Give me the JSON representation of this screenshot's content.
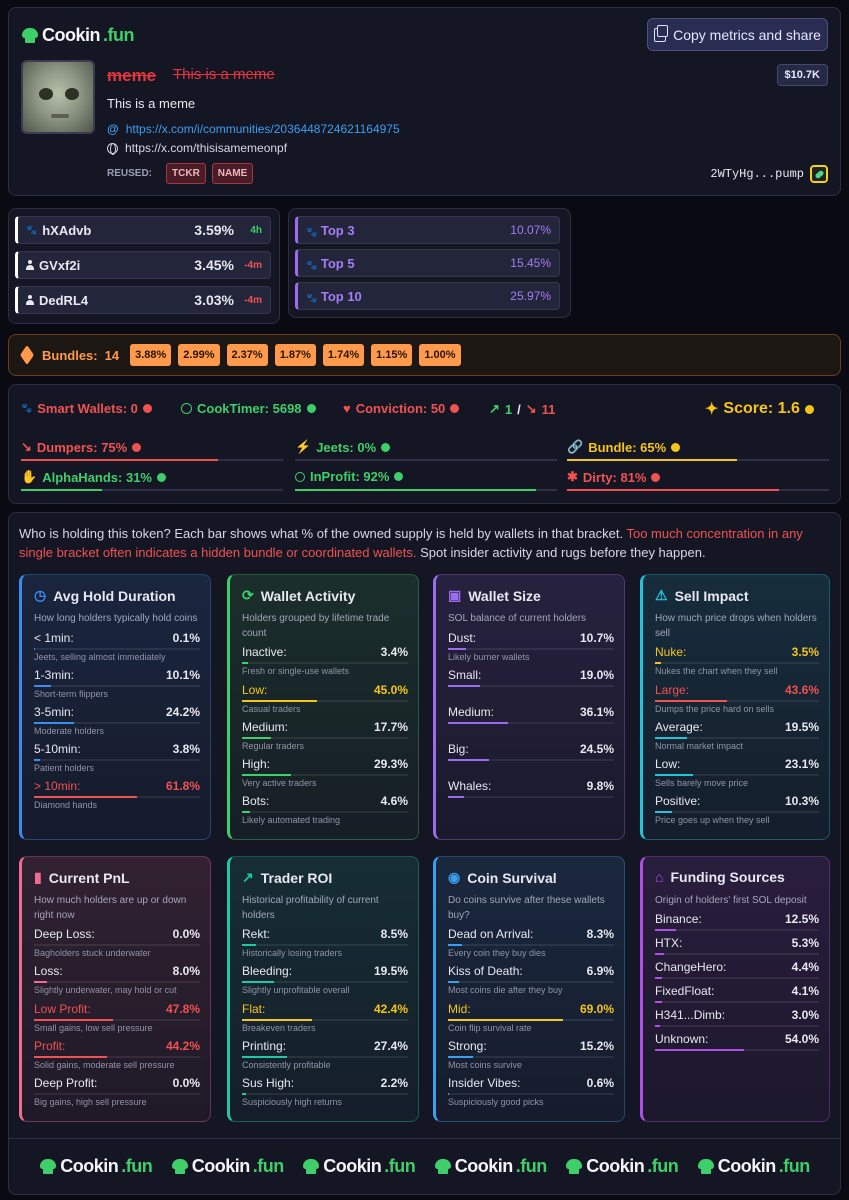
{
  "brand": {
    "name": "Cookin",
    "tld": ".fun"
  },
  "header": {
    "copy_button": "Copy metrics and share",
    "title": "meme",
    "title_sub": "This is a meme",
    "market_cap": "$10.7K",
    "description": "This is a meme",
    "community_link": "https://x.com/i/communities/2036448724621164975",
    "website_link": "https://x.com/thisisamemeonpf",
    "reused_label": "REUSED:",
    "reused_tags": [
      "TCKR",
      "NAME"
    ],
    "contract": "2WTyHg...pump"
  },
  "holders": [
    {
      "name": "hXAdvb",
      "pct": "3.59%",
      "ago": "4h",
      "ago_color": "#3fcf6a",
      "icon": "paw-icon"
    },
    {
      "name": "GVxf2i",
      "pct": "3.45%",
      "ago": "-4m",
      "ago_color": "#f05252",
      "icon": "person-icon"
    },
    {
      "name": "DedRL4",
      "pct": "3.03%",
      "ago": "-4m",
      "ago_color": "#f05252",
      "icon": "person-icon"
    }
  ],
  "tops": [
    {
      "name": "Top 3",
      "pct": "10.07%"
    },
    {
      "name": "Top 5",
      "pct": "15.45%"
    },
    {
      "name": "Top 10",
      "pct": "25.97%"
    }
  ],
  "bundles": {
    "label": "Bundles:",
    "count": "14",
    "chips": [
      "3.88%",
      "2.99%",
      "2.37%",
      "1.87%",
      "1.74%",
      "1.15%",
      "1.00%"
    ]
  },
  "metrics": {
    "smart_wallets": "Smart Wallets: 0",
    "cooktimer": "CookTimer: 5698",
    "conviction": "Conviction: 50",
    "trend_up": "1",
    "trend_sep": "/",
    "trend_down": "11",
    "score": "Score: 1.6",
    "dumpers": {
      "label": "Dumpers: 75%",
      "value": 75
    },
    "jeets": {
      "label": "Jeets: 0%",
      "value": 0
    },
    "bundle": {
      "label": "Bundle: 65%",
      "value": 65
    },
    "alphahands": {
      "label": "AlphaHands: 31%",
      "value": 31
    },
    "inprofit": {
      "label": "InProfit: 92%",
      "value": 92
    },
    "dirty": {
      "label": "Dirty: 81%",
      "value": 81
    }
  },
  "intro": {
    "text1": "Who is holding this token? Each bar shows what % of the owned supply is held by wallets in that bracket. ",
    "warning": "Too much concentration in any single bracket often indicates a hidden bundle or coordinated wallets.",
    "text2": " Spot insider activity and rugs before they happen."
  },
  "cards": [
    {
      "title": "Avg Hold Duration",
      "caption": "How long holders typically hold coins",
      "accent": "#3b8cf0",
      "icon": "clock-icon",
      "rows": [
        {
          "label": "< 1min:",
          "value": "0.1%",
          "pct": 0.1,
          "note": "Jeets, selling almost immediately"
        },
        {
          "label": "1-3min:",
          "value": "10.1%",
          "pct": 10.1,
          "note": "Short-term flippers"
        },
        {
          "label": "3-5min:",
          "value": "24.2%",
          "pct": 24.2,
          "note": "Moderate holders"
        },
        {
          "label": "5-10min:",
          "value": "3.8%",
          "pct": 3.8,
          "note": "Patient holders"
        },
        {
          "label": "> 10min:",
          "value": "61.8%",
          "pct": 61.8,
          "note": "Diamond hands",
          "hl": "#f05252"
        }
      ]
    },
    {
      "title": "Wallet Activity",
      "caption": "Holders grouped by lifetime trade count",
      "accent": "#3fcf6a",
      "icon": "refresh-icon",
      "rows": [
        {
          "label": "Inactive:",
          "value": "3.4%",
          "pct": 3.4,
          "note": "Fresh or single-use wallets"
        },
        {
          "label": "Low:",
          "value": "45.0%",
          "pct": 45.0,
          "note": "Casual traders",
          "hl": "#f5c518"
        },
        {
          "label": "Medium:",
          "value": "17.7%",
          "pct": 17.7,
          "note": "Regular traders"
        },
        {
          "label": "High:",
          "value": "29.3%",
          "pct": 29.3,
          "note": "Very active traders"
        },
        {
          "label": "Bots:",
          "value": "4.6%",
          "pct": 4.6,
          "note": "Likely automated trading"
        }
      ]
    },
    {
      "title": "Wallet Size",
      "caption": "SOL balance of current holders",
      "accent": "#9b6cf0",
      "icon": "wallet-icon",
      "rows": [
        {
          "label": "Dust:",
          "value": "10.7%",
          "pct": 10.7,
          "note": "Likely burner wallets"
        },
        {
          "label": "Small:",
          "value": "19.0%",
          "pct": 19.0,
          "note": ""
        },
        {
          "label": "Medium:",
          "value": "36.1%",
          "pct": 36.1,
          "note": ""
        },
        {
          "label": "Big:",
          "value": "24.5%",
          "pct": 24.5,
          "note": ""
        },
        {
          "label": "Whales:",
          "value": "9.8%",
          "pct": 9.8,
          "note": ""
        }
      ]
    },
    {
      "title": "Sell Impact",
      "caption": "How much price drops when holders sell",
      "accent": "#22c3dd",
      "icon": "warning-icon",
      "rows": [
        {
          "label": "Nuke:",
          "value": "3.5%",
          "pct": 3.5,
          "note": "Nukes the chart when they sell",
          "hl": "#f5c518"
        },
        {
          "label": "Large:",
          "value": "43.6%",
          "pct": 43.6,
          "note": "Dumps the price hard on sells",
          "hl": "#f05252"
        },
        {
          "label": "Average:",
          "value": "19.5%",
          "pct": 19.5,
          "note": "Normal market impact"
        },
        {
          "label": "Low:",
          "value": "23.1%",
          "pct": 23.1,
          "note": "Sells barely move price"
        },
        {
          "label": "Positive:",
          "value": "10.3%",
          "pct": 10.3,
          "note": "Price goes up when they sell"
        }
      ]
    },
    {
      "title": "Current PnL",
      "caption": "How much holders are up or down right now",
      "accent": "#ef6d92",
      "icon": "bars-icon",
      "rows": [
        {
          "label": "Deep Loss:",
          "value": "0.0%",
          "pct": 0,
          "note": "Bagholders stuck underwater"
        },
        {
          "label": "Loss:",
          "value": "8.0%",
          "pct": 8.0,
          "note": "Slightly underwater, may hold or cut"
        },
        {
          "label": "Low Profit:",
          "value": "47.8%",
          "pct": 47.8,
          "note": "Small gains, low sell pressure",
          "hl": "#f05252"
        },
        {
          "label": "Profit:",
          "value": "44.2%",
          "pct": 44.2,
          "note": "Solid gains, moderate sell pressure",
          "hl": "#f05252"
        },
        {
          "label": "Deep Profit:",
          "value": "0.0%",
          "pct": 0,
          "note": "Big gains, high sell pressure"
        }
      ]
    },
    {
      "title": "Trader ROI",
      "caption": "Historical profitability of current holders",
      "accent": "#1fc7a6",
      "icon": "trend-icon",
      "rows": [
        {
          "label": "Rekt:",
          "value": "8.5%",
          "pct": 8.5,
          "note": "Historically losing traders"
        },
        {
          "label": "Bleeding:",
          "value": "19.5%",
          "pct": 19.5,
          "note": "Slightly unprofitable overall"
        },
        {
          "label": "Flat:",
          "value": "42.4%",
          "pct": 42.4,
          "note": "Breakeven traders",
          "hl": "#f5c518"
        },
        {
          "label": "Printing:",
          "value": "27.4%",
          "pct": 27.4,
          "note": "Consistently profitable"
        },
        {
          "label": "Sus High:",
          "value": "2.2%",
          "pct": 2.2,
          "note": "Suspiciously high returns"
        }
      ]
    },
    {
      "title": "Coin Survival",
      "caption": "Do coins survive after these wallets buy?",
      "accent": "#3b9ff0",
      "icon": "signal-icon",
      "rows": [
        {
          "label": "Dead on Arrival:",
          "value": "8.3%",
          "pct": 8.3,
          "note": "Every coin they buy dies"
        },
        {
          "label": "Kiss of Death:",
          "value": "6.9%",
          "pct": 6.9,
          "note": "Most coins die after they buy"
        },
        {
          "label": "Mid:",
          "value": "69.0%",
          "pct": 69.0,
          "note": "Coin flip survival rate",
          "hl": "#f5c518"
        },
        {
          "label": "Strong:",
          "value": "15.2%",
          "pct": 15.2,
          "note": "Most coins survive"
        },
        {
          "label": "Insider Vibes:",
          "value": "0.6%",
          "pct": 0.6,
          "note": "Suspiciously good picks"
        }
      ]
    },
    {
      "title": "Funding Sources",
      "caption": "Origin of holders' first SOL deposit",
      "accent": "#b04ee8",
      "icon": "bank-icon",
      "rows": [
        {
          "label": "Binance:",
          "value": "12.5%",
          "pct": 12.5,
          "note": ""
        },
        {
          "label": "HTX:",
          "value": "5.3%",
          "pct": 5.3,
          "note": ""
        },
        {
          "label": "ChangeHero:",
          "value": "4.4%",
          "pct": 4.4,
          "note": ""
        },
        {
          "label": "FixedFloat:",
          "value": "4.1%",
          "pct": 4.1,
          "note": ""
        },
        {
          "label": "H341...Dimb:",
          "value": "3.0%",
          "pct": 3.0,
          "note": ""
        },
        {
          "label": "Unknown:",
          "value": "54.0%",
          "pct": 54.0,
          "note": ""
        }
      ]
    }
  ],
  "footer_logo_count": 6
}
